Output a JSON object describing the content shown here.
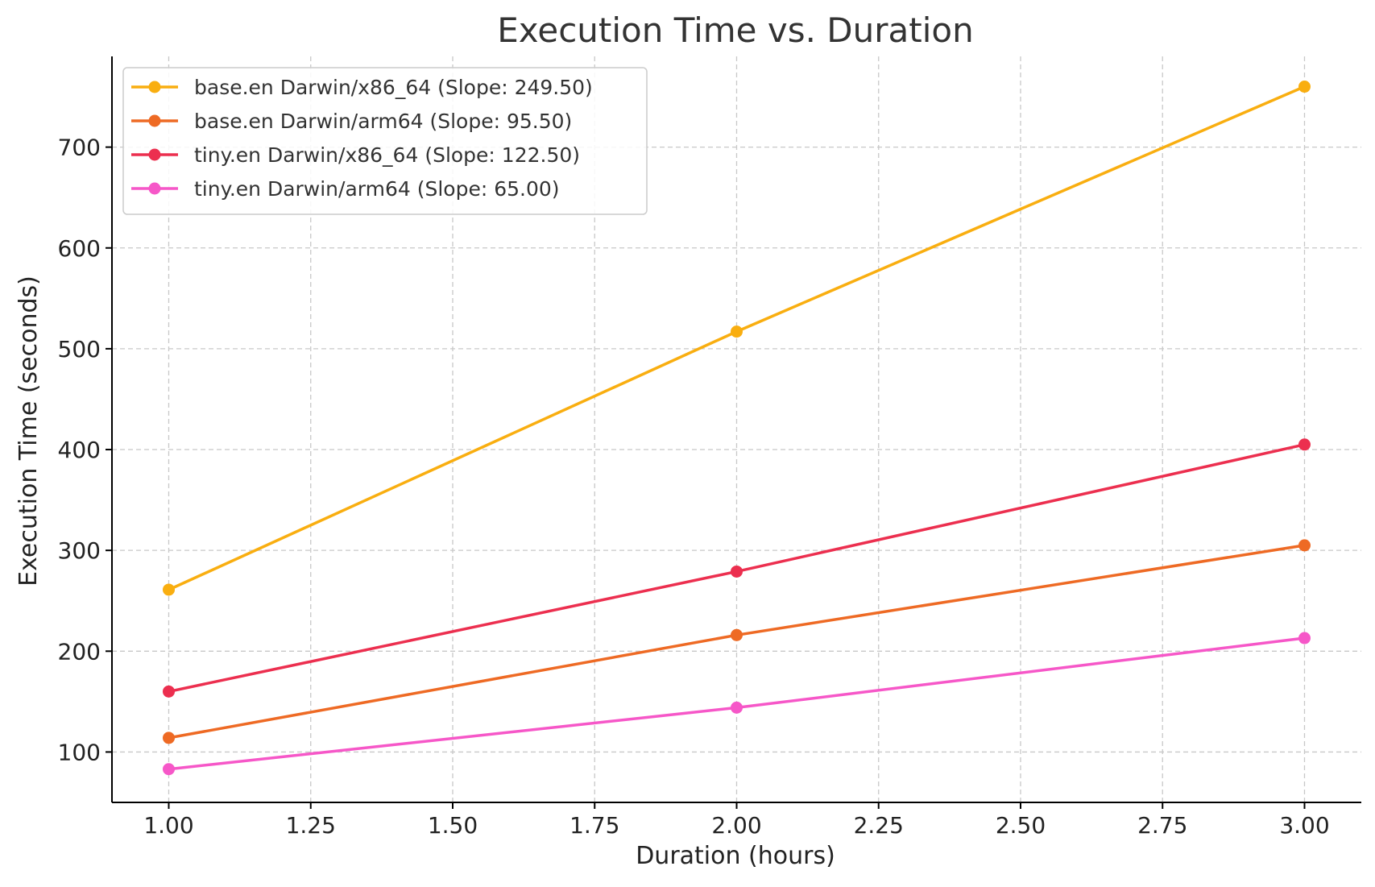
{
  "chart_data": {
    "type": "line",
    "title": "Execution Time vs. Duration",
    "xlabel": "Duration (hours)",
    "ylabel": "Execution Time (seconds)",
    "x": [
      1.0,
      2.0,
      3.0
    ],
    "xlim": [
      0.9,
      3.1
    ],
    "ylim": [
      50,
      790
    ],
    "xticks": [
      1.0,
      1.25,
      1.5,
      1.75,
      2.0,
      2.25,
      2.5,
      2.75,
      3.0
    ],
    "xtick_labels": [
      "1.00",
      "1.25",
      "1.50",
      "1.75",
      "2.00",
      "2.25",
      "2.50",
      "2.75",
      "3.00"
    ],
    "yticks": [
      100,
      200,
      300,
      400,
      500,
      600,
      700
    ],
    "ytick_labels": [
      "100",
      "200",
      "300",
      "400",
      "500",
      "600",
      "700"
    ],
    "grid": true,
    "legend_position": "top-left",
    "series": [
      {
        "name": "base.en Darwin/x86_64 (Slope: 249.50)",
        "color": "#F9AE10",
        "values": [
          261,
          517,
          760
        ]
      },
      {
        "name": "base.en Darwin/arm64 (Slope: 95.50)",
        "color": "#EE6A24",
        "values": [
          114,
          216,
          305
        ]
      },
      {
        "name": "tiny.en Darwin/x86_64 (Slope: 122.50)",
        "color": "#EC2F4F",
        "values": [
          160,
          279,
          405
        ]
      },
      {
        "name": "tiny.en Darwin/arm64 (Slope: 65.00)",
        "color": "#F657C8",
        "values": [
          83,
          144,
          213
        ]
      }
    ]
  }
}
